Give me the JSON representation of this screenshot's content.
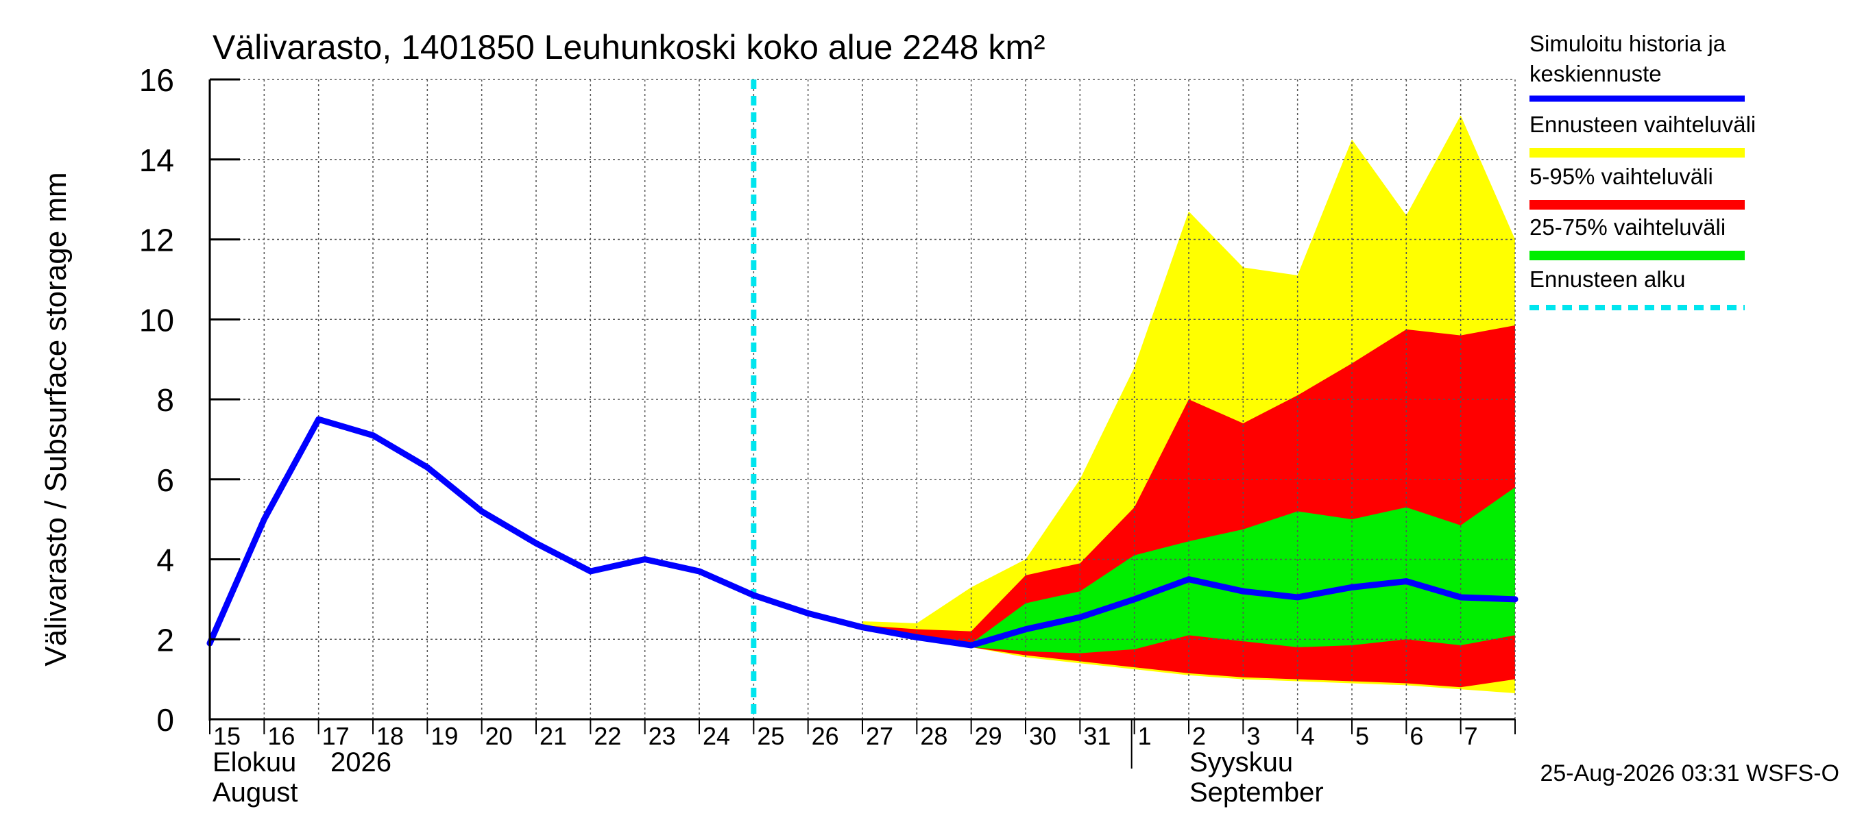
{
  "chart_data": {
    "type": "area",
    "title": "Välivarasto, 1401850 Leuhunkoski koko alue 2248 km²",
    "ylabel": "Välivarasto / Subsurface storage  mm",
    "ylim": [
      0,
      16
    ],
    "yticks": [
      0,
      2,
      4,
      6,
      8,
      10,
      12,
      14,
      16
    ],
    "x": [
      "2026-08-15",
      "2026-08-16",
      "2026-08-17",
      "2026-08-18",
      "2026-08-19",
      "2026-08-20",
      "2026-08-21",
      "2026-08-22",
      "2026-08-23",
      "2026-08-24",
      "2026-08-25",
      "2026-08-26",
      "2026-08-27",
      "2026-08-28",
      "2026-08-29",
      "2026-08-30",
      "2026-08-31",
      "2026-09-01",
      "2026-09-02",
      "2026-09-03",
      "2026-09-04",
      "2026-09-05",
      "2026-09-06",
      "2026-09-07",
      "2026-09-08"
    ],
    "xtick_labels": [
      "15",
      "16",
      "17",
      "18",
      "19",
      "20",
      "21",
      "22",
      "23",
      "24",
      "25",
      "26",
      "27",
      "28",
      "29",
      "30",
      "31",
      "1",
      "2",
      "3",
      "4",
      "5",
      "6",
      "7"
    ],
    "month_labels": [
      {
        "fi": "Elokuu",
        "year": "2026",
        "en": "August"
      },
      {
        "fi": "Syyskuu",
        "en": "September"
      }
    ],
    "forecast_start": "2026-08-25",
    "series": [
      {
        "name": "Simuloitu historia ja keskiennuste",
        "color": "#0000ff",
        "x": [
          "2026-08-15",
          "2026-08-16",
          "2026-08-17",
          "2026-08-18",
          "2026-08-19",
          "2026-08-20",
          "2026-08-21",
          "2026-08-22",
          "2026-08-23",
          "2026-08-24",
          "2026-08-25",
          "2026-08-26",
          "2026-08-27",
          "2026-08-28",
          "2026-08-29",
          "2026-08-30",
          "2026-08-31",
          "2026-09-01",
          "2026-09-02",
          "2026-09-03",
          "2026-09-04",
          "2026-09-05",
          "2026-09-06",
          "2026-09-07",
          "2026-09-08"
        ],
        "values": [
          1.9,
          5.0,
          7.5,
          7.1,
          6.3,
          5.2,
          4.4,
          3.7,
          4.0,
          3.7,
          3.1,
          2.65,
          2.3,
          2.05,
          1.85,
          2.25,
          2.55,
          3.0,
          3.5,
          3.2,
          3.05,
          3.3,
          3.45,
          3.05,
          3.0
        ]
      },
      {
        "name": "Ennusteen vaihteluväli",
        "color": "#ffff00",
        "x": [
          "2026-08-27",
          "2026-08-28",
          "2026-08-29",
          "2026-08-30",
          "2026-08-31",
          "2026-09-01",
          "2026-09-02",
          "2026-09-03",
          "2026-09-04",
          "2026-09-05",
          "2026-09-06",
          "2026-09-07",
          "2026-09-08"
        ],
        "upper": [
          2.45,
          2.4,
          3.3,
          4.0,
          6.0,
          8.8,
          12.7,
          11.3,
          11.1,
          14.5,
          12.6,
          15.1,
          12.0
        ],
        "lower": [
          2.25,
          2.0,
          1.8,
          1.55,
          1.4,
          1.25,
          1.1,
          1.0,
          0.95,
          0.9,
          0.85,
          0.75,
          0.65
        ]
      },
      {
        "name": "5-95% vaihteluväli",
        "color": "#ff0000",
        "x": [
          "2026-08-27",
          "2026-08-28",
          "2026-08-29",
          "2026-08-30",
          "2026-08-31",
          "2026-09-01",
          "2026-09-02",
          "2026-09-03",
          "2026-09-04",
          "2026-09-05",
          "2026-09-06",
          "2026-09-07",
          "2026-09-08"
        ],
        "upper": [
          2.35,
          2.25,
          2.2,
          3.6,
          3.9,
          5.3,
          8.0,
          7.4,
          8.1,
          8.9,
          9.75,
          9.6,
          9.85
        ],
        "lower": [
          2.25,
          2.05,
          1.8,
          1.6,
          1.45,
          1.3,
          1.15,
          1.05,
          1.0,
          0.95,
          0.9,
          0.8,
          1.0
        ]
      },
      {
        "name": "25-75% vaihteluväli",
        "color": "#00ee00",
        "x": [
          "2026-08-29",
          "2026-08-30",
          "2026-08-31",
          "2026-09-01",
          "2026-09-02",
          "2026-09-03",
          "2026-09-04",
          "2026-09-05",
          "2026-09-06",
          "2026-09-07",
          "2026-09-08"
        ],
        "upper": [
          1.9,
          2.9,
          3.2,
          4.1,
          4.45,
          4.75,
          5.2,
          5.0,
          5.3,
          4.85,
          5.8
        ],
        "lower": [
          1.8,
          1.7,
          1.65,
          1.75,
          2.1,
          1.95,
          1.8,
          1.85,
          2.0,
          1.85,
          2.1
        ]
      },
      {
        "name": "Ennusteen alku",
        "color": "#00e5ee",
        "style": "dashed"
      }
    ],
    "legend_position": "right",
    "grid": true,
    "footer": "25-Aug-2026 03:31 WSFS-O"
  }
}
